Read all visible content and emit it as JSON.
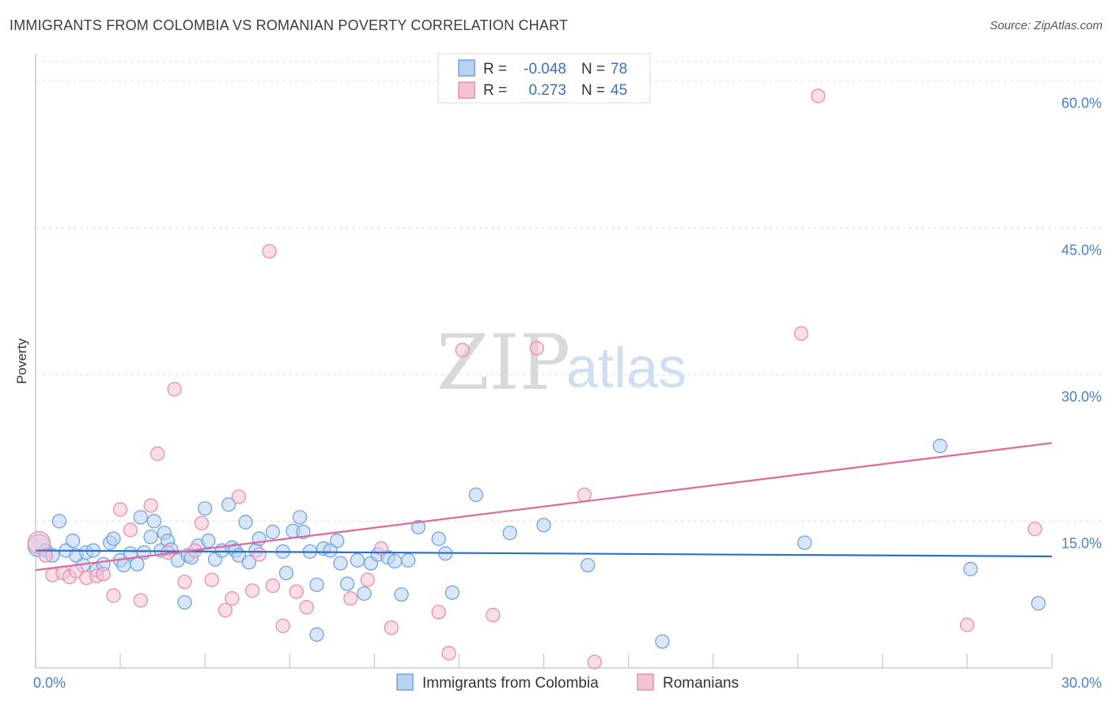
{
  "header": {
    "title": "IMMIGRANTS FROM COLOMBIA VS ROMANIAN POVERTY CORRELATION CHART",
    "source": "Source: ZipAtlas.com"
  },
  "colors": {
    "blue": "#6fa3e6",
    "blue_fill": "#b9d1f2",
    "blue_line": "#2a6fc9",
    "pink": "#ea8cab",
    "pink_fill": "#f6c3d3",
    "pink_line": "#e0679a",
    "grid": "#dddddd"
  },
  "legend": {
    "rows": [
      {
        "r_label": "R =",
        "r_value": "-0.048",
        "n_label": "N =",
        "n_value": "78"
      },
      {
        "r_label": "R =",
        "r_value": "0.273",
        "n_label": "N =",
        "n_value": "45"
      }
    ]
  },
  "bottom_legend": {
    "items": [
      "Immigrants from Colombia",
      "Romanians"
    ]
  },
  "watermark": {
    "zip": "ZIP",
    "atlas": "atlas"
  },
  "chart_data": {
    "type": "scatter",
    "title": "IMMIGRANTS FROM COLOMBIA VS ROMANIAN POVERTY CORRELATION CHART",
    "xlabel": "",
    "ylabel": "Poverty",
    "xlim": [
      0,
      30
    ],
    "ylim": [
      0,
      62
    ],
    "x_tick_labels": [
      "0.0%",
      "30.0%"
    ],
    "y_ticks": [
      15,
      30,
      45,
      60
    ],
    "y_tick_labels": [
      "15.0%",
      "30.0%",
      "45.0%",
      "60.0%"
    ],
    "series": [
      {
        "name": "Immigrants from Colombia",
        "r": -0.048,
        "n": 78,
        "trend": {
          "x": [
            0,
            30
          ],
          "y": [
            12.0,
            11.4
          ]
        },
        "points": [
          {
            "x": 0.1,
            "y": 12.5,
            "big": true
          },
          {
            "x": 0.3,
            "y": 12.0
          },
          {
            "x": 0.5,
            "y": 11.5
          },
          {
            "x": 0.7,
            "y": 15.0
          },
          {
            "x": 0.9,
            "y": 12.0
          },
          {
            "x": 1.1,
            "y": 13.0
          },
          {
            "x": 1.2,
            "y": 11.5
          },
          {
            "x": 1.4,
            "y": 10.5
          },
          {
            "x": 1.5,
            "y": 11.8
          },
          {
            "x": 1.7,
            "y": 12.0
          },
          {
            "x": 1.8,
            "y": 10.0
          },
          {
            "x": 2.0,
            "y": 10.6
          },
          {
            "x": 2.2,
            "y": 12.8
          },
          {
            "x": 2.3,
            "y": 13.2
          },
          {
            "x": 2.5,
            "y": 11.0
          },
          {
            "x": 2.6,
            "y": 10.5
          },
          {
            "x": 2.8,
            "y": 11.7
          },
          {
            "x": 3.0,
            "y": 10.6
          },
          {
            "x": 3.1,
            "y": 15.4
          },
          {
            "x": 3.2,
            "y": 11.8
          },
          {
            "x": 3.4,
            "y": 13.4
          },
          {
            "x": 3.5,
            "y": 15.0
          },
          {
            "x": 3.7,
            "y": 12.0
          },
          {
            "x": 3.8,
            "y": 13.8
          },
          {
            "x": 3.9,
            "y": 13.0
          },
          {
            "x": 4.0,
            "y": 12.1
          },
          {
            "x": 4.2,
            "y": 11.0
          },
          {
            "x": 4.4,
            "y": 6.7
          },
          {
            "x": 4.5,
            "y": 11.5
          },
          {
            "x": 4.6,
            "y": 11.3
          },
          {
            "x": 4.8,
            "y": 12.5
          },
          {
            "x": 5.0,
            "y": 16.3
          },
          {
            "x": 5.1,
            "y": 13.0
          },
          {
            "x": 5.3,
            "y": 11.1
          },
          {
            "x": 5.5,
            "y": 12.0
          },
          {
            "x": 5.7,
            "y": 16.7
          },
          {
            "x": 5.8,
            "y": 12.3
          },
          {
            "x": 5.9,
            "y": 12.0
          },
          {
            "x": 6.0,
            "y": 11.5
          },
          {
            "x": 6.2,
            "y": 14.9
          },
          {
            "x": 6.3,
            "y": 10.8
          },
          {
            "x": 6.5,
            "y": 12.0
          },
          {
            "x": 6.6,
            "y": 13.2
          },
          {
            "x": 7.0,
            "y": 13.9
          },
          {
            "x": 7.3,
            "y": 11.9
          },
          {
            "x": 7.4,
            "y": 9.7
          },
          {
            "x": 7.6,
            "y": 14.0
          },
          {
            "x": 7.8,
            "y": 15.4
          },
          {
            "x": 7.9,
            "y": 13.9
          },
          {
            "x": 8.1,
            "y": 11.9
          },
          {
            "x": 8.3,
            "y": 8.5
          },
          {
            "x": 8.5,
            "y": 12.2
          },
          {
            "x": 8.7,
            "y": 12.0
          },
          {
            "x": 8.9,
            "y": 13.0
          },
          {
            "x": 9.0,
            "y": 10.7
          },
          {
            "x": 9.2,
            "y": 8.6
          },
          {
            "x": 9.5,
            "y": 11.0
          },
          {
            "x": 9.7,
            "y": 7.6
          },
          {
            "x": 9.9,
            "y": 10.7
          },
          {
            "x": 10.1,
            "y": 11.6
          },
          {
            "x": 10.4,
            "y": 11.3
          },
          {
            "x": 10.6,
            "y": 10.9
          },
          {
            "x": 10.8,
            "y": 7.5
          },
          {
            "x": 11.0,
            "y": 11.0
          },
          {
            "x": 11.3,
            "y": 14.4
          },
          {
            "x": 8.3,
            "y": 3.4
          },
          {
            "x": 11.9,
            "y": 13.2
          },
          {
            "x": 12.1,
            "y": 11.7
          },
          {
            "x": 12.3,
            "y": 7.7
          },
          {
            "x": 13.0,
            "y": 17.7
          },
          {
            "x": 14.0,
            "y": 13.8
          },
          {
            "x": 15.0,
            "y": 14.6
          },
          {
            "x": 16.3,
            "y": 10.5
          },
          {
            "x": 18.5,
            "y": 2.7
          },
          {
            "x": 22.7,
            "y": 12.8
          },
          {
            "x": 26.7,
            "y": 22.7
          },
          {
            "x": 27.6,
            "y": 10.1
          },
          {
            "x": 29.6,
            "y": 6.6
          }
        ]
      },
      {
        "name": "Romanians",
        "r": 0.273,
        "n": 45,
        "trend": {
          "x": [
            0,
            30
          ],
          "y": [
            10.0,
            23.0
          ]
        },
        "points": [
          {
            "x": 0.1,
            "y": 12.8,
            "big": true
          },
          {
            "x": 0.3,
            "y": 11.5
          },
          {
            "x": 0.5,
            "y": 9.5
          },
          {
            "x": 0.8,
            "y": 9.7
          },
          {
            "x": 1.0,
            "y": 9.3
          },
          {
            "x": 1.2,
            "y": 9.9
          },
          {
            "x": 1.5,
            "y": 9.2
          },
          {
            "x": 1.8,
            "y": 9.4
          },
          {
            "x": 2.0,
            "y": 9.6
          },
          {
            "x": 2.3,
            "y": 7.4
          },
          {
            "x": 2.5,
            "y": 16.2
          },
          {
            "x": 2.8,
            "y": 14.1
          },
          {
            "x": 3.1,
            "y": 6.9
          },
          {
            "x": 3.4,
            "y": 16.6
          },
          {
            "x": 3.6,
            "y": 21.9
          },
          {
            "x": 3.9,
            "y": 11.8
          },
          {
            "x": 4.1,
            "y": 28.5
          },
          {
            "x": 4.4,
            "y": 8.8
          },
          {
            "x": 4.7,
            "y": 12.0
          },
          {
            "x": 4.9,
            "y": 14.8
          },
          {
            "x": 5.2,
            "y": 9.0
          },
          {
            "x": 5.6,
            "y": 5.9
          },
          {
            "x": 5.8,
            "y": 7.1
          },
          {
            "x": 6.0,
            "y": 17.5
          },
          {
            "x": 6.4,
            "y": 7.9
          },
          {
            "x": 6.6,
            "y": 11.6
          },
          {
            "x": 6.9,
            "y": 42.6
          },
          {
            "x": 7.0,
            "y": 8.4
          },
          {
            "x": 7.3,
            "y": 4.3
          },
          {
            "x": 7.7,
            "y": 7.8
          },
          {
            "x": 8.0,
            "y": 6.2
          },
          {
            "x": 9.3,
            "y": 7.1
          },
          {
            "x": 9.8,
            "y": 9.0
          },
          {
            "x": 10.2,
            "y": 12.2
          },
          {
            "x": 10.5,
            "y": 4.1
          },
          {
            "x": 11.9,
            "y": 5.7
          },
          {
            "x": 12.2,
            "y": 1.5
          },
          {
            "x": 12.6,
            "y": 32.5
          },
          {
            "x": 13.5,
            "y": 5.4
          },
          {
            "x": 14.8,
            "y": 32.7
          },
          {
            "x": 16.2,
            "y": 17.7
          },
          {
            "x": 16.5,
            "y": 0.6
          },
          {
            "x": 22.6,
            "y": 34.2
          },
          {
            "x": 23.1,
            "y": 58.5
          },
          {
            "x": 27.5,
            "y": 4.4
          },
          {
            "x": 29.5,
            "y": 14.2
          }
        ]
      }
    ]
  }
}
